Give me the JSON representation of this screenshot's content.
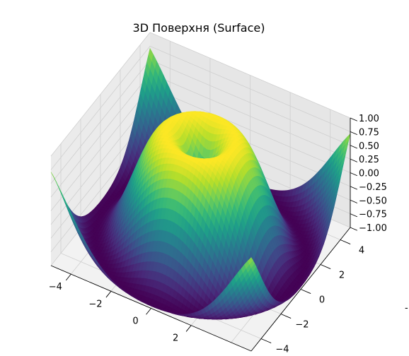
{
  "chart_data": {
    "type": "surface",
    "title": "3D Поверхня (Surface)",
    "function": "z = sin(sqrt(x^2 + y^2))",
    "colormap": "viridis",
    "grid": true,
    "x_ticks": [
      "−4",
      "−2",
      "0",
      "2"
    ],
    "y_ticks": [
      "−4",
      "−2",
      "0",
      "2",
      "4"
    ],
    "z_ticks": [
      "−1.00",
      "−0.75",
      "−0.50",
      "−0.25",
      "0.00",
      "0.25",
      "0.50",
      "0.75",
      "1.00"
    ],
    "xlim": [
      -5,
      5
    ],
    "ylim": [
      -5,
      5
    ],
    "zlim": [
      -1,
      1
    ],
    "edge_mark": "-"
  }
}
